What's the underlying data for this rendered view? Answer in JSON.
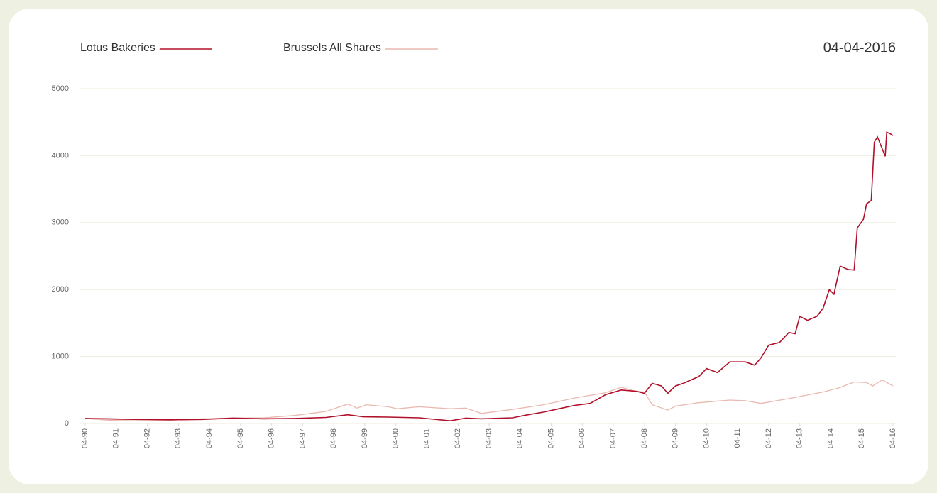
{
  "chart_data": {
    "type": "line",
    "date": "04-04-2016",
    "xlim": [
      1990.25,
      2016.25
    ],
    "xticks": [
      {
        "value": 1990.25,
        "label": "04-90"
      },
      {
        "value": 1991.25,
        "label": "04-91"
      },
      {
        "value": 1992.25,
        "label": "04-92"
      },
      {
        "value": 1993.25,
        "label": "04-93"
      },
      {
        "value": 1994.25,
        "label": "04-94"
      },
      {
        "value": 1995.25,
        "label": "04-95"
      },
      {
        "value": 1996.25,
        "label": "04-96"
      },
      {
        "value": 1997.25,
        "label": "04-97"
      },
      {
        "value": 1998.25,
        "label": "04-98"
      },
      {
        "value": 1999.25,
        "label": "04-99"
      },
      {
        "value": 2000.25,
        "label": "04-00"
      },
      {
        "value": 2001.25,
        "label": "04-01"
      },
      {
        "value": 2002.25,
        "label": "04-02"
      },
      {
        "value": 2003.25,
        "label": "04-03"
      },
      {
        "value": 2004.25,
        "label": "04-04"
      },
      {
        "value": 2005.25,
        "label": "04-05"
      },
      {
        "value": 2006.25,
        "label": "04-06"
      },
      {
        "value": 2007.25,
        "label": "04-07"
      },
      {
        "value": 2008.25,
        "label": "04-08"
      },
      {
        "value": 2009.25,
        "label": "04-09"
      },
      {
        "value": 2010.25,
        "label": "04-10"
      },
      {
        "value": 2011.25,
        "label": "04-11"
      },
      {
        "value": 2012.25,
        "label": "04-12"
      },
      {
        "value": 2013.25,
        "label": "04-13"
      },
      {
        "value": 2014.25,
        "label": "04-14"
      },
      {
        "value": 2015.25,
        "label": "04-15"
      },
      {
        "value": 2016.25,
        "label": "04-16"
      }
    ],
    "ylim": [
      0,
      5000
    ],
    "yticks": [
      0,
      1000,
      2000,
      3000,
      4000,
      5000
    ],
    "grid": true,
    "series": [
      {
        "name": "Lotus Bakeries",
        "color": "#b0102a",
        "x": [
          1990.25,
          1991,
          1992,
          1993,
          1994,
          1995,
          1996,
          1997,
          1998,
          1998.7,
          1999.2,
          2000,
          2001,
          2002,
          2002.5,
          2003,
          2004,
          2004.5,
          2005,
          2005.5,
          2006,
          2006.5,
          2007,
          2007.5,
          2008,
          2008.25,
          2008.5,
          2008.8,
          2009,
          2009.25,
          2009.5,
          2010,
          2010.25,
          2010.6,
          2011,
          2011.5,
          2011.8,
          2012,
          2012.25,
          2012.6,
          2012.9,
          2013.1,
          2013.25,
          2013.5,
          2013.8,
          2014,
          2014.2,
          2014.35,
          2014.55,
          2014.8,
          2015,
          2015.1,
          2015.3,
          2015.4,
          2015.55,
          2015.65,
          2015.75,
          2016,
          2016.05,
          2016.15,
          2016.25
        ],
        "values": [
          75,
          70,
          60,
          55,
          60,
          80,
          70,
          75,
          90,
          130,
          100,
          95,
          85,
          40,
          80,
          70,
          85,
          130,
          170,
          220,
          270,
          300,
          430,
          500,
          480,
          450,
          600,
          560,
          450,
          560,
          600,
          700,
          820,
          760,
          920,
          920,
          870,
          980,
          1170,
          1210,
          1360,
          1340,
          1600,
          1540,
          1600,
          1720,
          2000,
          1930,
          2350,
          2300,
          2290,
          2920,
          3050,
          3280,
          3330,
          4200,
          4280,
          3990,
          4350,
          4330,
          4300
        ]
      },
      {
        "name": "Brussels All Shares",
        "color": "#eab8b0",
        "x": [
          1990.25,
          1991,
          1992,
          1993,
          1994,
          1995,
          1996,
          1997,
          1998,
          1998.7,
          1999,
          1999.3,
          2000,
          2000.3,
          2001,
          2002,
          2002.5,
          2003,
          2004,
          2005,
          2006,
          2006.5,
          2007,
          2007.5,
          2008,
          2008.25,
          2008.5,
          2009,
          2009.25,
          2010,
          2011,
          2011.5,
          2012,
          2013,
          2014,
          2014.5,
          2015,
          2015.4,
          2015.6,
          2015.9,
          2016.25
        ],
        "values": [
          75,
          50,
          55,
          50,
          70,
          80,
          85,
          120,
          180,
          290,
          230,
          280,
          250,
          220,
          250,
          220,
          230,
          150,
          210,
          280,
          380,
          420,
          460,
          540,
          480,
          470,
          280,
          200,
          260,
          310,
          350,
          340,
          300,
          380,
          470,
          530,
          620,
          610,
          560,
          650,
          560
        ]
      }
    ]
  }
}
